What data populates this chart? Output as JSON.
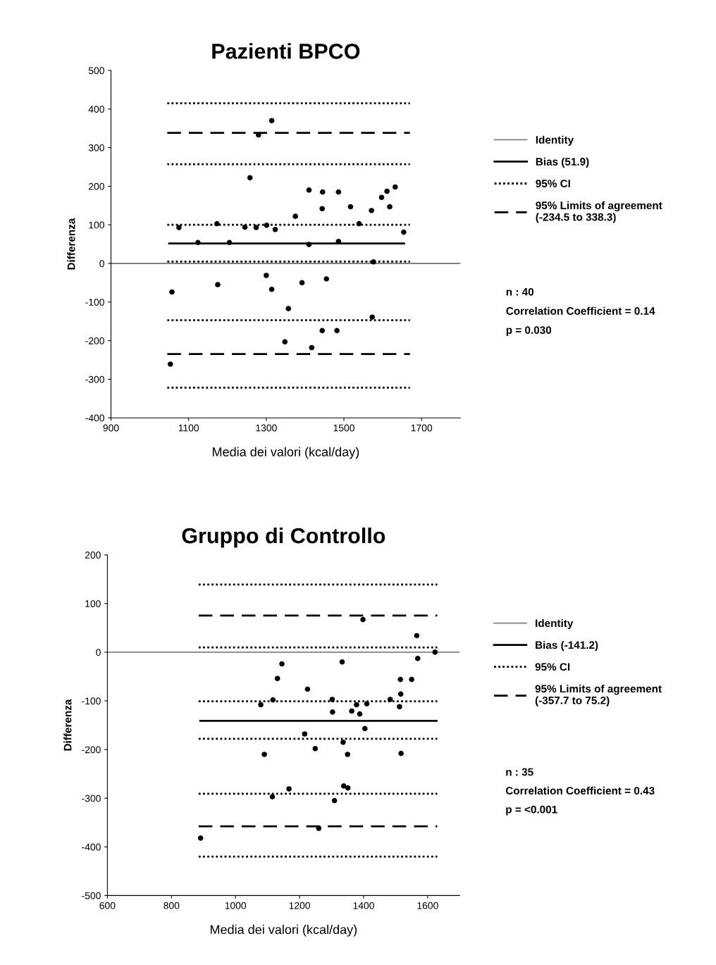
{
  "chart_data": [
    {
      "type": "scatter",
      "title": "Pazienti BPCO",
      "xlabel": "Media dei valori (kcal/day)",
      "ylabel": "Differenza",
      "xlim": [
        900,
        1800
      ],
      "xticks": [
        900,
        1100,
        1300,
        1500,
        1700
      ],
      "ylim": [
        -400,
        500
      ],
      "yticks": [
        -400,
        -300,
        -200,
        -100,
        0,
        100,
        200,
        300,
        400,
        500
      ],
      "legend": "right",
      "ref_lines": [
        {
          "axis": "y",
          "value": 0,
          "label": "Identity",
          "color": "#808080",
          "line_style": "solid"
        }
      ],
      "series": [
        {
          "type": "line",
          "name": "Bias (51.9)",
          "color": "#000000",
          "line_style": "solid",
          "x": [
            1050,
            1655
          ],
          "values": [
            51.9,
            51.9
          ]
        },
        {
          "type": "line",
          "name": "95% CI",
          "color": "#000000",
          "line_style": "dotted",
          "x": [
            1045,
            1670
          ],
          "values": [
            415,
            415
          ]
        },
        {
          "type": "line",
          "color": "#000000",
          "line_style": "dotted",
          "x": [
            1045,
            1670
          ],
          "values": [
            257,
            257
          ]
        },
        {
          "type": "line",
          "color": "#000000",
          "line_style": "dotted",
          "x": [
            1045,
            1670
          ],
          "values": [
            100,
            100
          ]
        },
        {
          "type": "line",
          "color": "#000000",
          "line_style": "dotted",
          "x": [
            1045,
            1670
          ],
          "values": [
            5,
            5
          ]
        },
        {
          "type": "line",
          "color": "#000000",
          "line_style": "dotted",
          "x": [
            1045,
            1670
          ],
          "values": [
            -147,
            -147
          ]
        },
        {
          "type": "line",
          "color": "#000000",
          "line_style": "dotted",
          "x": [
            1045,
            1670
          ],
          "values": [
            -322,
            -322
          ]
        },
        {
          "type": "line",
          "name": "95% Limits of agreement\n(-234.5 to 338.3)",
          "color": "#000000",
          "line_style": "dashed",
          "x": [
            1045,
            1670
          ],
          "values": [
            338.3,
            338.3
          ]
        },
        {
          "type": "line",
          "color": "#000000",
          "line_style": "dashed",
          "x": [
            1045,
            1670
          ],
          "values": [
            -234.5,
            -234.5
          ]
        },
        {
          "marker": "circle",
          "color": "#000000",
          "x": [
            1075,
            1124,
            1173,
            1205,
            1245,
            1258,
            1274,
            1280,
            1301,
            1314,
            1323,
            1375,
            1410,
            1410,
            1444,
            1445,
            1486,
            1486,
            1517,
            1539,
            1571,
            1576,
            1597,
            1611,
            1618,
            1632,
            1654,
            1057,
            1175,
            1300,
            1314,
            1357,
            1392,
            1455,
            1573,
            1444,
            1482,
            1348,
            1417,
            1053
          ],
          "values": [
            93,
            54,
            103,
            54,
            94,
            222,
            93,
            333,
            99,
            370,
            88,
            122,
            190,
            49,
            142,
            185,
            185,
            57,
            147,
            103,
            137,
            4,
            171,
            187,
            147,
            198,
            81,
            -74,
            -55,
            -31,
            -67,
            -117,
            -50,
            -40,
            -139,
            -174,
            -174,
            -203,
            -218,
            -261
          ]
        }
      ],
      "annotations": [
        "n : 40",
        "Correlation Coefficient = 0.14",
        "p = 0.030"
      ]
    },
    {
      "type": "scatter",
      "title": "Gruppo di Controllo",
      "xlabel": "Media dei valori (kcal/day)",
      "ylabel": "Differenza",
      "xlim": [
        600,
        1700
      ],
      "xticks": [
        600,
        800,
        1000,
        1200,
        1400,
        1600
      ],
      "ylim": [
        -500,
        200
      ],
      "yticks": [
        -500,
        -400,
        -300,
        -200,
        -100,
        0,
        100,
        200
      ],
      "legend": "right",
      "ref_lines": [
        {
          "axis": "y",
          "value": 0,
          "label": "Identity",
          "color": "#808080",
          "line_style": "solid"
        }
      ],
      "series": [
        {
          "type": "line",
          "name": "Bias (-141.2)",
          "color": "#000000",
          "line_style": "solid",
          "x": [
            890,
            1628
          ],
          "values": [
            -141.2,
            -141.2
          ]
        },
        {
          "type": "line",
          "name": "95% CI",
          "color": "#000000",
          "line_style": "dotted",
          "x": [
            885,
            1630
          ],
          "values": [
            139,
            139
          ]
        },
        {
          "type": "line",
          "color": "#000000",
          "line_style": "dotted",
          "x": [
            885,
            1630
          ],
          "values": [
            10,
            10
          ]
        },
        {
          "type": "line",
          "color": "#000000",
          "line_style": "dotted",
          "x": [
            885,
            1630
          ],
          "values": [
            -101,
            -101
          ]
        },
        {
          "type": "line",
          "color": "#000000",
          "line_style": "dotted",
          "x": [
            885,
            1630
          ],
          "values": [
            -178,
            -178
          ]
        },
        {
          "type": "line",
          "color": "#000000",
          "line_style": "dotted",
          "x": [
            885,
            1630
          ],
          "values": [
            -291,
            -291
          ]
        },
        {
          "type": "line",
          "color": "#000000",
          "line_style": "dotted",
          "x": [
            885,
            1630
          ],
          "values": [
            -420,
            -420
          ]
        },
        {
          "type": "line",
          "name": "95% Limits of agreement\n(-357.7 to 75.2)",
          "color": "#000000",
          "line_style": "dashed",
          "x": [
            885,
            1630
          ],
          "values": [
            75.2,
            75.2
          ]
        },
        {
          "type": "line",
          "color": "#000000",
          "line_style": "dashed",
          "x": [
            885,
            1630
          ],
          "values": [
            -357.7,
            -357.7
          ]
        },
        {
          "marker": "circle",
          "color": "#000000",
          "x": [
            1398,
            1566,
            1623,
            1569,
            1145,
            1333,
            1131,
            1515,
            1550,
            1225,
            1516,
            1079,
            1117,
            1302,
            1483,
            1378,
            1410,
            1512,
            1303,
            1363,
            1388,
            1404,
            1216,
            1336,
            1249,
            1090,
            1350,
            1517,
            1338,
            1351,
            1167,
            1115,
            1309,
            1260,
            891
          ],
          "values": [
            67,
            34,
            0,
            -13,
            -24,
            -20,
            -54,
            -56,
            -56,
            -76,
            -86,
            -108,
            -98,
            -97,
            -97,
            -108,
            -106,
            -112,
            -123,
            -121,
            -127,
            -157,
            -168,
            -185,
            -198,
            -210,
            -210,
            -208,
            -275,
            -279,
            -281,
            -297,
            -305,
            -362,
            -382
          ]
        }
      ],
      "annotations": [
        "n : 35",
        "Correlation Coefficient = 0.43",
        "p = <0.001"
      ]
    }
  ]
}
